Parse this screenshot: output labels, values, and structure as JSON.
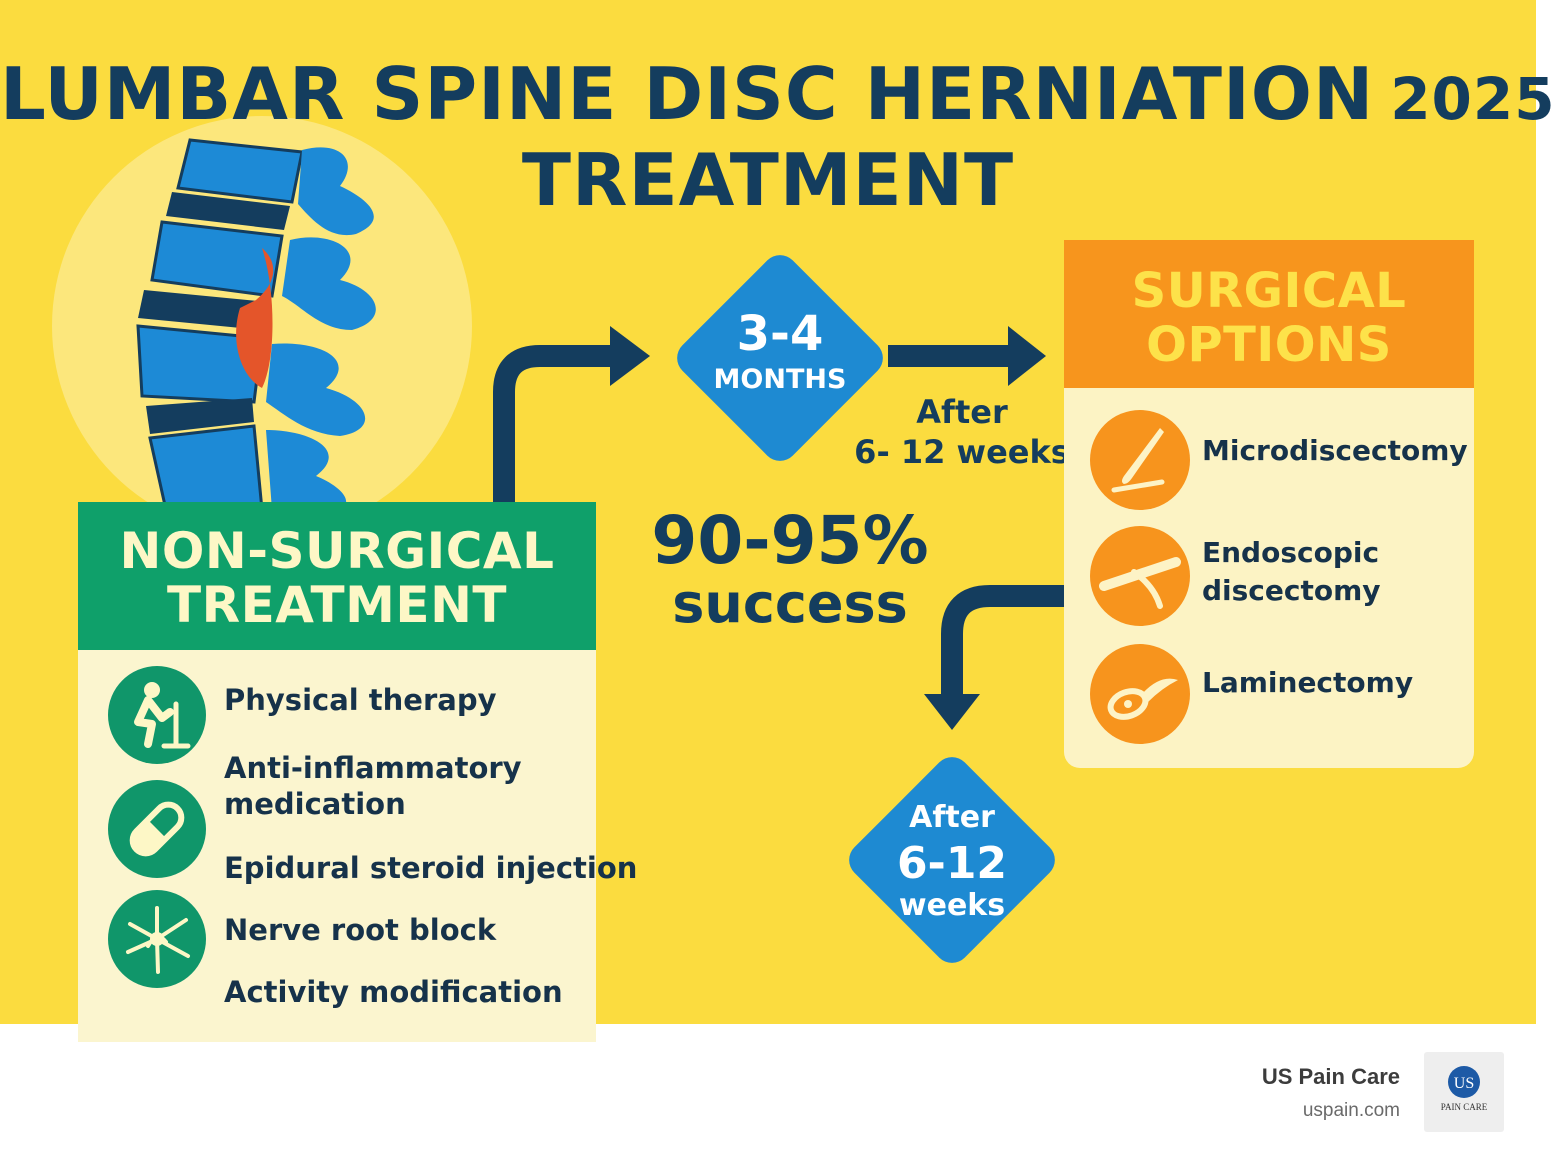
{
  "title": {
    "line1": "LUMBAR SPINE DISC HERNIATION",
    "year": "2025",
    "line2": "TREATMENT"
  },
  "non_surgical": {
    "heading_line1": "NON-SURGICAL",
    "heading_line2": "TREATMENT",
    "items": [
      "Physical therapy",
      "Anti-inflammatory",
      "medication",
      "Epidural steroid injection",
      "Nerve root block",
      "Activity modification"
    ]
  },
  "timeline_top": {
    "value": "3-4",
    "unit": "MONTHS"
  },
  "success": {
    "rate": "90-95%",
    "label": "success"
  },
  "after_label": {
    "line1": "After",
    "line2": "6- 12 weeks"
  },
  "surgical": {
    "heading_line1": "SURGICAL",
    "heading_line2": "OPTIONS",
    "items": [
      "Microdiscectomy",
      "Endoscopic",
      "discectomy",
      "Laminectomy"
    ]
  },
  "timeline_bottom": {
    "line1": "After",
    "line2": "6-12",
    "line3": "weeks"
  },
  "footer": {
    "brand": "US Pain Care",
    "url": "uspain.com",
    "logo_mark": "US",
    "logo_sub": "PAIN CARE"
  },
  "colors": {
    "background": "#fbdc3f",
    "navy": "#143d5e",
    "green": "#0fa06a",
    "orange": "#f7951d",
    "blue": "#1e8ad2",
    "herniation": "#e4552a"
  }
}
